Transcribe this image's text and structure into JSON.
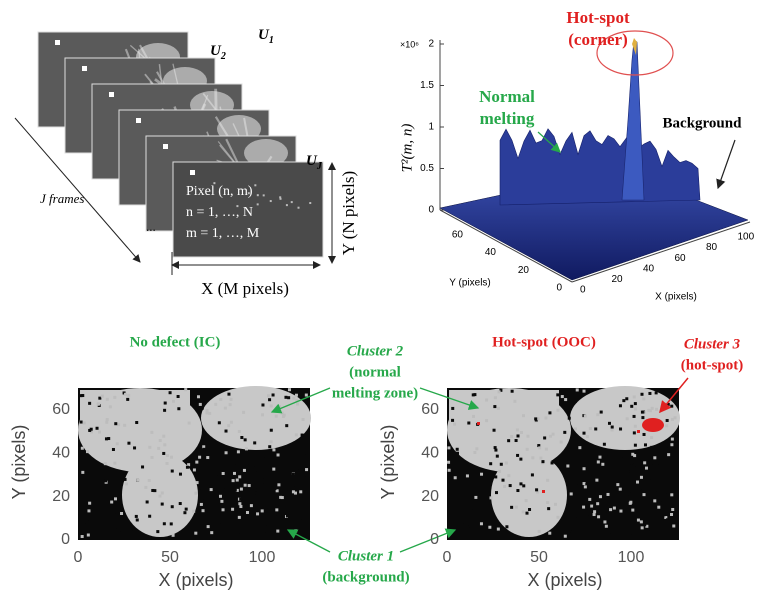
{
  "frames_diagram": {
    "frame_labels": [
      {
        "symbol": "U",
        "subscript": "1"
      },
      {
        "symbol": "U",
        "subscript": "2"
      },
      {
        "symbol": "U",
        "subscript": "J"
      }
    ],
    "pixel_label": [
      "Pixel (n, m)",
      "n = 1, …, N",
      "m = 1, …, M"
    ],
    "ellipsis": "...",
    "frames_label": "J frames",
    "x_label": "X (M pixels)",
    "y_label": "Y (N pixels)"
  },
  "surface_plot": {
    "z_label": "T²(m, n)",
    "z_multiplier": "×10⁶",
    "z_ticks": [
      0,
      0.5,
      1,
      1.5,
      2
    ],
    "y_ticks": [
      0,
      20,
      40,
      60
    ],
    "x_ticks": [
      0,
      20,
      40,
      60,
      80,
      100
    ],
    "x_label": "X (pixels)",
    "y_label": "Y (pixels)",
    "annotations": {
      "hot_spot": [
        "Hot-spot",
        "(corner)"
      ],
      "normal_melting": [
        "Normal",
        "melting"
      ],
      "background": "Background"
    }
  },
  "cluster_maps": {
    "panels": [
      {
        "title": "No defect (IC)",
        "x_ticks": [
          0,
          50,
          100
        ],
        "y_ticks": [
          0,
          20,
          40,
          60
        ],
        "x_label": "X (pixels)",
        "y_label": "Y (pixels)"
      },
      {
        "title": "Hot-spot (OOC)",
        "x_ticks": [
          0,
          50,
          100
        ],
        "y_ticks": [
          0,
          20,
          40,
          60
        ],
        "x_label": "X (pixels)",
        "y_label": "Y (pixels)"
      }
    ],
    "annotations": {
      "cluster_1": [
        "Cluster 1",
        "(background)"
      ],
      "cluster_2": [
        "Cluster 2",
        "(normal",
        "melting zone)"
      ],
      "cluster_3": [
        "Cluster 3",
        "(hot-spot)"
      ]
    }
  }
}
